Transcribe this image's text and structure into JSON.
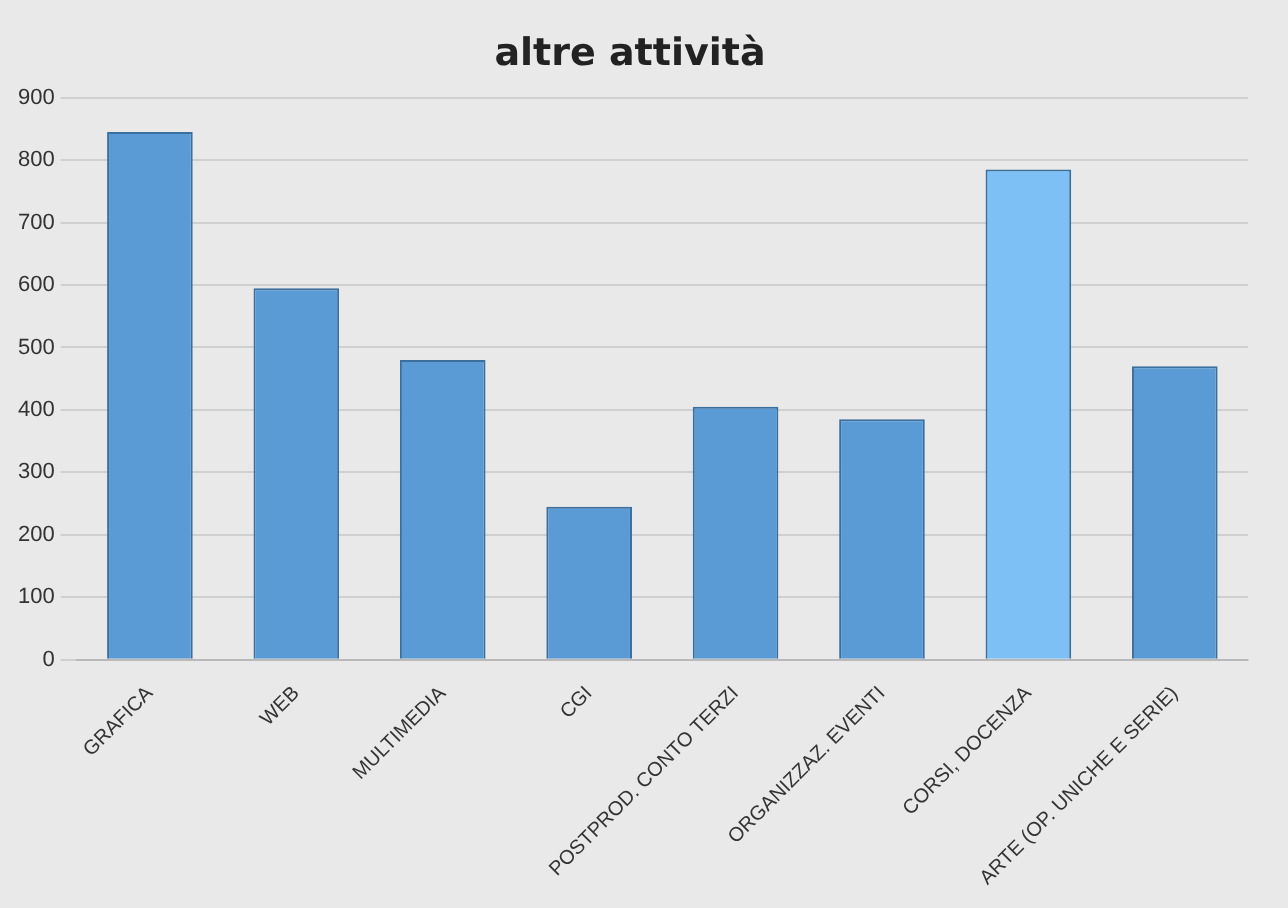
{
  "chart_data": {
    "type": "bar",
    "title": "altre attività",
    "categories": [
      "GRAFICA",
      "WEB",
      "MULTIMEDIA",
      "CGI",
      "POSTPROD. CONTO TERZI",
      "ORGANIZZAZ. EVENTI",
      "CORSI, DOCENZA",
      "ARTE (OP. UNICHE E SERIE)"
    ],
    "values": [
      845,
      595,
      480,
      245,
      405,
      385,
      785,
      470
    ],
    "colors": [
      "#5b9bd5",
      "#5b9bd5",
      "#5b9bd5",
      "#5b9bd5",
      "#5b9bd5",
      "#5b9bd5",
      "#7cc0f5",
      "#5b9bd5"
    ],
    "ylim": [
      0,
      900
    ],
    "yticks": [
      0,
      100,
      200,
      300,
      400,
      500,
      600,
      700,
      800,
      900
    ],
    "grid": "y",
    "legend": false
  }
}
